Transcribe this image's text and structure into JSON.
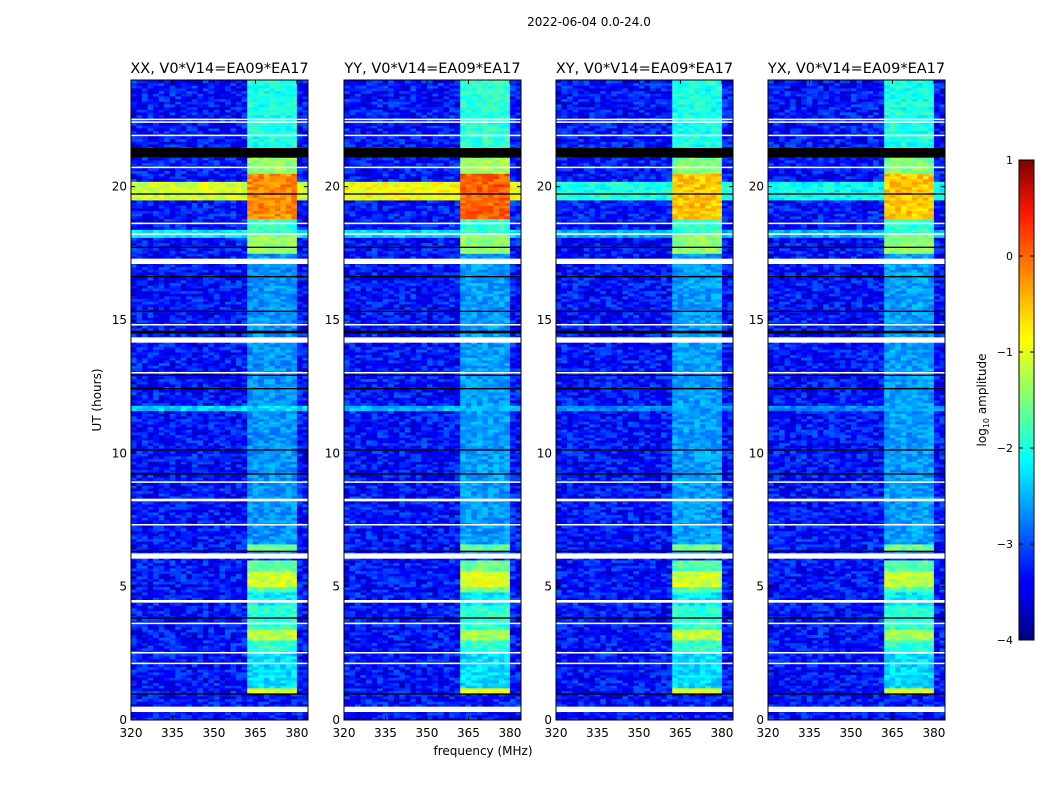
{
  "chart_data": {
    "type": "heatmap",
    "title": "2022-06-04 0.0-24.0",
    "xlabel": "frequency (MHz)",
    "ylabel": "UT (hours)",
    "xlim": [
      320,
      384
    ],
    "ylim": [
      0,
      24
    ],
    "xticks": [
      "320",
      "335",
      "350",
      "365",
      "380"
    ],
    "xtick_values": [
      320,
      335,
      350,
      365,
      380
    ],
    "yticks": [
      "0",
      "5",
      "10",
      "15",
      "20"
    ],
    "ytick_values": [
      0,
      5,
      10,
      15,
      20
    ],
    "colorbar": {
      "label_main": "log",
      "label_sub": "10",
      "label_rest": " amplitude",
      "range": [
        -4,
        1
      ],
      "ticks": [
        "1",
        "0",
        "−1",
        "−2",
        "−3",
        "−4"
      ],
      "tick_values": [
        1,
        0,
        -1,
        -2,
        -3,
        -4
      ],
      "colormap": "jet"
    },
    "panels": [
      {
        "title": "XX, V0*V14=EA09*EA17"
      },
      {
        "title": "YY, V0*V14=EA09*EA17"
      },
      {
        "title": "XY, V0*V14=EA09*EA17"
      },
      {
        "title": "YX, V0*V14=EA09*EA17"
      }
    ],
    "background_level": -3.3,
    "signal_subbands_mhz": [
      [
        361.5,
        366
      ],
      [
        367,
        371
      ],
      [
        372,
        375.5
      ],
      [
        376.5,
        380.5
      ]
    ],
    "events": [
      {
        "t": [
          1.0,
          1.2
        ],
        "band": "signal",
        "level": [
          -1.0,
          -1.0,
          -1.0,
          -1.0
        ]
      },
      {
        "t": [
          1.2,
          2.5
        ],
        "band": "signal",
        "level": [
          -2.3,
          -2.3,
          -2.3,
          -2.3
        ]
      },
      {
        "t": [
          2.5,
          4.3
        ],
        "band": "signal",
        "level": [
          -1.9,
          -1.9,
          -1.9,
          -1.9
        ]
      },
      {
        "t": [
          3.0,
          3.4
        ],
        "band": "signal",
        "level": [
          -1.2,
          -1.3,
          -1.2,
          -1.3
        ]
      },
      {
        "t": [
          4.3,
          4.8
        ],
        "band": "signal",
        "level": [
          -2.2,
          -2.2,
          -2.2,
          -2.2
        ]
      },
      {
        "t": [
          4.8,
          6.0
        ],
        "band": "signal",
        "level": [
          -1.7,
          -1.6,
          -1.7,
          -1.7
        ]
      },
      {
        "t": [
          5.0,
          5.6
        ],
        "band": "signal",
        "level": [
          -1.1,
          -1.0,
          -1.1,
          -1.2
        ]
      },
      {
        "t": [
          6.3,
          6.6
        ],
        "band": "signal",
        "level": [
          -1.6,
          -1.6,
          -1.6,
          -1.6
        ]
      },
      {
        "t": [
          6.6,
          17.5
        ],
        "band": "signal",
        "level": [
          -2.65,
          -2.6,
          -2.6,
          -2.6
        ]
      },
      {
        "t": [
          17.5,
          18.2
        ],
        "band": "signal",
        "level": [
          -1.4,
          -1.4,
          -1.4,
          -1.4
        ]
      },
      {
        "t": [
          18.2,
          18.8
        ],
        "band": "signal",
        "level": [
          -1.9,
          -1.9,
          -1.9,
          -1.9
        ]
      },
      {
        "t": [
          18.8,
          20.5
        ],
        "band": "signal",
        "level": [
          -0.3,
          -0.1,
          -0.6,
          -0.6
        ]
      },
      {
        "t": [
          20.5,
          21.1
        ],
        "band": "signal",
        "level": [
          -1.4,
          -1.3,
          -1.5,
          -1.5
        ]
      },
      {
        "t": [
          21.4,
          24.0
        ],
        "band": "signal",
        "level": [
          -2.0,
          -1.9,
          -2.0,
          -2.0
        ]
      },
      {
        "t": [
          19.5,
          20.2
        ],
        "band": "full",
        "level": [
          -1.1,
          -0.9,
          -2.0,
          -2.1
        ]
      },
      {
        "t": [
          11.6,
          11.8
        ],
        "band": "full",
        "level": [
          -2.3,
          -2.5,
          -2.7,
          -2.7
        ]
      },
      {
        "t": [
          18.1,
          18.4
        ],
        "band": "full",
        "level": [
          -2.2,
          -2.3,
          -2.5,
          -2.5
        ]
      }
    ],
    "flagged_rows_white": [
      [
        0.3,
        0.5
      ],
      [
        2.1,
        2.15
      ],
      [
        2.5,
        2.55
      ],
      [
        3.6,
        3.65
      ],
      [
        4.4,
        4.5
      ],
      [
        6.05,
        6.25
      ],
      [
        7.3,
        7.35
      ],
      [
        8.2,
        8.3
      ],
      [
        8.9,
        8.95
      ],
      [
        13.0,
        13.05
      ],
      [
        14.15,
        14.35
      ],
      [
        14.8,
        14.85
      ],
      [
        17.1,
        17.3
      ],
      [
        18.2,
        18.25
      ],
      [
        18.6,
        18.65
      ],
      [
        20.7,
        20.75
      ],
      [
        21.9,
        21.95
      ],
      [
        22.4,
        22.45
      ],
      [
        22.5,
        22.55
      ]
    ],
    "flagged_rows_black": [
      [
        0.95,
        1.0
      ],
      [
        3.8,
        3.85
      ],
      [
        6.3,
        6.35
      ],
      [
        9.2,
        9.25
      ],
      [
        10.1,
        10.15
      ],
      [
        12.4,
        12.45
      ],
      [
        12.9,
        12.95
      ],
      [
        14.5,
        14.6
      ],
      [
        15.3,
        15.35
      ],
      [
        16.6,
        16.65
      ],
      [
        17.7,
        17.75
      ],
      [
        19.7,
        19.75
      ],
      [
        21.1,
        21.45
      ]
    ]
  }
}
